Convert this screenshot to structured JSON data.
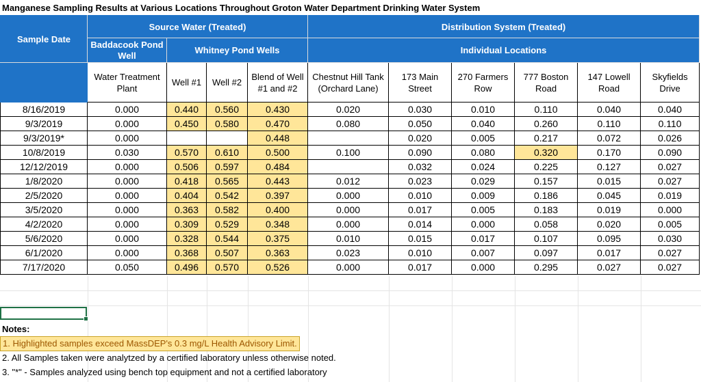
{
  "title": "Manganese Sampling Results at Various Locations Throughout Groton Water Department Drinking Water System",
  "headers": {
    "sample_date": "Sample Date",
    "source_water": "Source Water  (Treated)",
    "distribution": "Distribution System (Treated)",
    "baddacook": "Baddacook Pond Well",
    "whitney": "Whitney Pond Wells",
    "individual": "Individual Locations",
    "columns": [
      "Water Treatment Plant",
      "Well #1",
      "Well #2",
      "Blend of Well #1 and #2",
      "Chestnut Hill Tank (Orchard Lane)",
      "173 Main Street",
      "270 Farmers Row",
      "777 Boston Road",
      "147 Lowell Road",
      "Skyfields Drive"
    ]
  },
  "rows": [
    {
      "date": "8/16/2019",
      "values": [
        "0.000",
        "0.440",
        "0.560",
        "0.430",
        "0.020",
        "0.030",
        "0.010",
        "0.110",
        "0.040",
        "0.040"
      ],
      "highlight": [
        1,
        2,
        3
      ]
    },
    {
      "date": "9/3/2019",
      "values": [
        "0.000",
        "0.450",
        "0.580",
        "0.470",
        "0.080",
        "0.050",
        "0.040",
        "0.260",
        "0.110",
        "0.110"
      ],
      "highlight": [
        1,
        2,
        3
      ]
    },
    {
      "date": "9/3/2019*",
      "values": [
        "0.000",
        "",
        "",
        "0.448",
        "",
        "0.020",
        "0.005",
        "0.217",
        "0.072",
        "0.026"
      ],
      "highlight": [
        3
      ]
    },
    {
      "date": "10/8/2019",
      "values": [
        "0.030",
        "0.570",
        "0.610",
        "0.500",
        "0.100",
        "0.090",
        "0.080",
        "0.320",
        "0.170",
        "0.090"
      ],
      "highlight": [
        1,
        2,
        3,
        7
      ]
    },
    {
      "date": "12/12/2019",
      "values": [
        "0.000",
        "0.506",
        "0.597",
        "0.484",
        "",
        "0.032",
        "0.024",
        "0.225",
        "0.127",
        "0.027"
      ],
      "highlight": [
        1,
        2,
        3
      ]
    },
    {
      "date": "1/8/2020",
      "values": [
        "0.000",
        "0.418",
        "0.565",
        "0.443",
        "0.012",
        "0.023",
        "0.029",
        "0.157",
        "0.015",
        "0.027"
      ],
      "highlight": [
        1,
        2,
        3
      ]
    },
    {
      "date": "2/5/2020",
      "values": [
        "0.000",
        "0.404",
        "0.542",
        "0.397",
        "0.000",
        "0.010",
        "0.009",
        "0.186",
        "0.045",
        "0.019"
      ],
      "highlight": [
        1,
        2,
        3
      ]
    },
    {
      "date": "3/5/2020",
      "values": [
        "0.000",
        "0.363",
        "0.582",
        "0.400",
        "0.000",
        "0.017",
        "0.005",
        "0.183",
        "0.019",
        "0.000"
      ],
      "highlight": [
        1,
        2,
        3
      ]
    },
    {
      "date": "4/2/2020",
      "values": [
        "0.000",
        "0.309",
        "0.529",
        "0.348",
        "0.000",
        "0.014",
        "0.000",
        "0.058",
        "0.020",
        "0.005"
      ],
      "highlight": [
        1,
        2,
        3
      ]
    },
    {
      "date": "5/6/2020",
      "values": [
        "0.000",
        "0.328",
        "0.544",
        "0.375",
        "0.010",
        "0.015",
        "0.017",
        "0.107",
        "0.095",
        "0.030"
      ],
      "highlight": [
        1,
        2,
        3
      ]
    },
    {
      "date": "6/1/2020",
      "values": [
        "0.000",
        "0.368",
        "0.507",
        "0.363",
        "0.023",
        "0.010",
        "0.007",
        "0.097",
        "0.017",
        "0.027"
      ],
      "highlight": [
        1,
        2,
        3
      ]
    },
    {
      "date": "7/17/2020",
      "values": [
        "0.050",
        "0.496",
        "0.570",
        "0.526",
        "0.000",
        "0.017",
        "0.000",
        "0.295",
        "0.027",
        "0.027"
      ],
      "highlight": [
        1,
        2,
        3
      ]
    }
  ],
  "colors": {
    "header_blue": "#1f73c7",
    "highlight": "#ffe699",
    "highlight_text": "#9c5700",
    "selection": "#1e7145"
  },
  "notes": {
    "heading": "Notes:",
    "items": [
      "1. Highlighted samples exceed MassDEP's 0.3 mg/L Health Advisory Limit.",
      "2. All Samples taken were analytzed by a certified laboratory unless otherwise noted.",
      "3.  \"*\" - Samples analyzed using bench top equipment and not a certified laboratory"
    ]
  }
}
